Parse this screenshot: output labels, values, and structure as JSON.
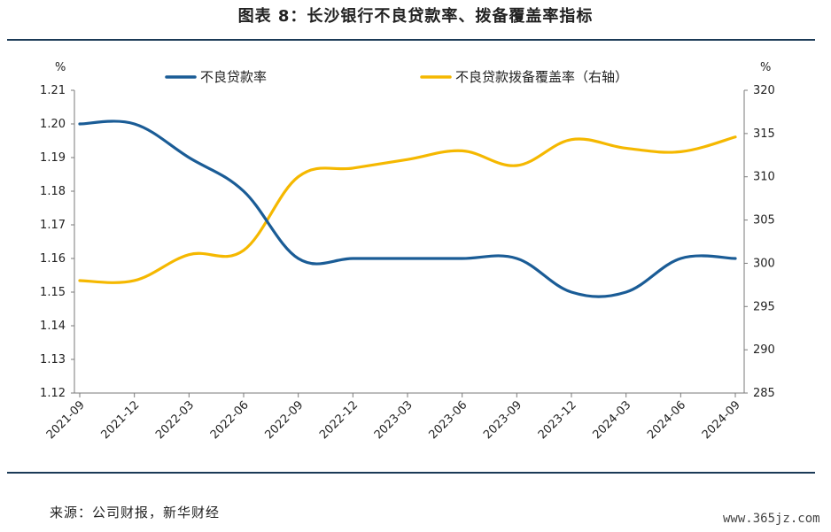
{
  "title": "图表 8：长沙银行不良贷款率、拨备覆盖率指标",
  "source": "来源：公司财报，新华财经",
  "watermark": "www.365jz.com",
  "chart_data": {
    "type": "line",
    "categories": [
      "2021-09",
      "2021-12",
      "2022-03",
      "2022-06",
      "2022-09",
      "2022-12",
      "2023-03",
      "2023-06",
      "2023-09",
      "2023-12",
      "2024-03",
      "2024-06",
      "2024-09"
    ],
    "left_unit": "%",
    "right_unit": "%",
    "left_ylim": [
      1.12,
      1.21
    ],
    "left_ticks": [
      "1.12",
      "1.13",
      "1.14",
      "1.15",
      "1.16",
      "1.17",
      "1.18",
      "1.19",
      "1.20",
      "1.21"
    ],
    "right_ylim": [
      285,
      320
    ],
    "right_ticks": [
      "285",
      "290",
      "295",
      "300",
      "305",
      "310",
      "315",
      "320"
    ],
    "legend_position": "top",
    "series": [
      {
        "name": "不良贷款率",
        "axis": "left",
        "color": "#1a5c96",
        "values": [
          1.2,
          1.2,
          1.19,
          1.18,
          1.16,
          1.16,
          1.16,
          1.16,
          1.16,
          1.15,
          1.15,
          1.16,
          1.16
        ]
      },
      {
        "name": "不良贷款拨备覆盖率（右轴）",
        "axis": "right",
        "color": "#f5b800",
        "values": [
          298.0,
          298.0,
          301.0,
          301.5,
          310.0,
          311.0,
          312.0,
          313.0,
          311.3,
          314.3,
          313.3,
          312.9,
          314.6
        ]
      }
    ]
  }
}
